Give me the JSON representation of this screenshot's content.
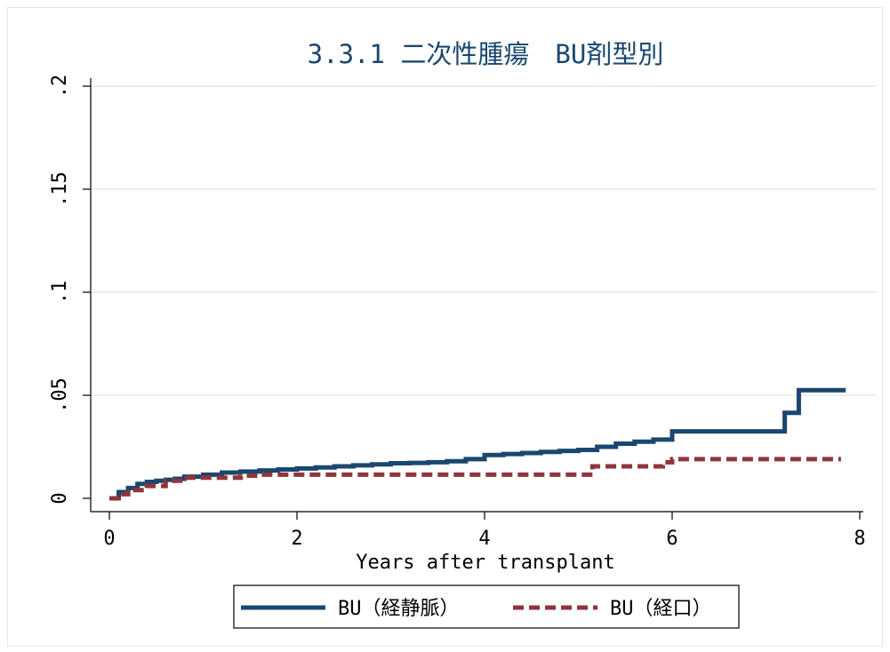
{
  "chart_data": {
    "type": "line",
    "title": "3.3.1 二次性腫瘍　BU剤型別",
    "xlabel": "Years after transplant",
    "ylabel": "",
    "xlim": [
      0,
      8
    ],
    "ylim": [
      0,
      0.2
    ],
    "x_ticks": [
      "0",
      "2",
      "4",
      "6",
      "8"
    ],
    "y_ticks": [
      "0",
      ".05",
      ".1",
      ".15",
      ".2"
    ],
    "grid": "horizontal",
    "legend_position": "bottom",
    "series": [
      {
        "name": "BU（経静脈）",
        "color": "#1a476f",
        "style": "solid-step",
        "x": [
          0,
          0.1,
          0.2,
          0.3,
          0.4,
          0.5,
          0.6,
          0.7,
          0.8,
          1.0,
          1.2,
          1.4,
          1.6,
          1.8,
          2.0,
          2.2,
          2.4,
          2.6,
          2.8,
          3.0,
          3.2,
          3.4,
          3.6,
          3.8,
          4.0,
          4.2,
          4.4,
          4.6,
          4.8,
          5.0,
          5.2,
          5.4,
          5.6,
          5.8,
          6.0,
          6.2,
          6.6,
          7.0,
          7.2,
          7.35,
          7.85
        ],
        "y": [
          0,
          0.003,
          0.005,
          0.007,
          0.008,
          0.0085,
          0.009,
          0.0095,
          0.0105,
          0.0115,
          0.0125,
          0.013,
          0.0135,
          0.014,
          0.0145,
          0.015,
          0.0155,
          0.016,
          0.0165,
          0.017,
          0.0172,
          0.0175,
          0.018,
          0.019,
          0.021,
          0.0215,
          0.022,
          0.0225,
          0.023,
          0.0235,
          0.025,
          0.0265,
          0.0275,
          0.0285,
          0.0325,
          0.0325,
          0.0325,
          0.0325,
          0.0415,
          0.0525,
          0.0525
        ]
      },
      {
        "name": "BU（経口）",
        "color": "#90353b",
        "style": "dashed-step",
        "x": [
          0,
          0.1,
          0.2,
          0.4,
          0.6,
          0.8,
          1.0,
          1.4,
          1.6,
          2.0,
          3.0,
          4.0,
          5.0,
          5.15,
          5.5,
          5.9,
          6.0,
          7.0,
          7.8
        ],
        "y": [
          0,
          0.002,
          0.004,
          0.006,
          0.0085,
          0.01,
          0.01,
          0.011,
          0.0115,
          0.0115,
          0.0115,
          0.0115,
          0.0115,
          0.0155,
          0.0155,
          0.0175,
          0.019,
          0.019,
          0.019
        ]
      }
    ]
  }
}
